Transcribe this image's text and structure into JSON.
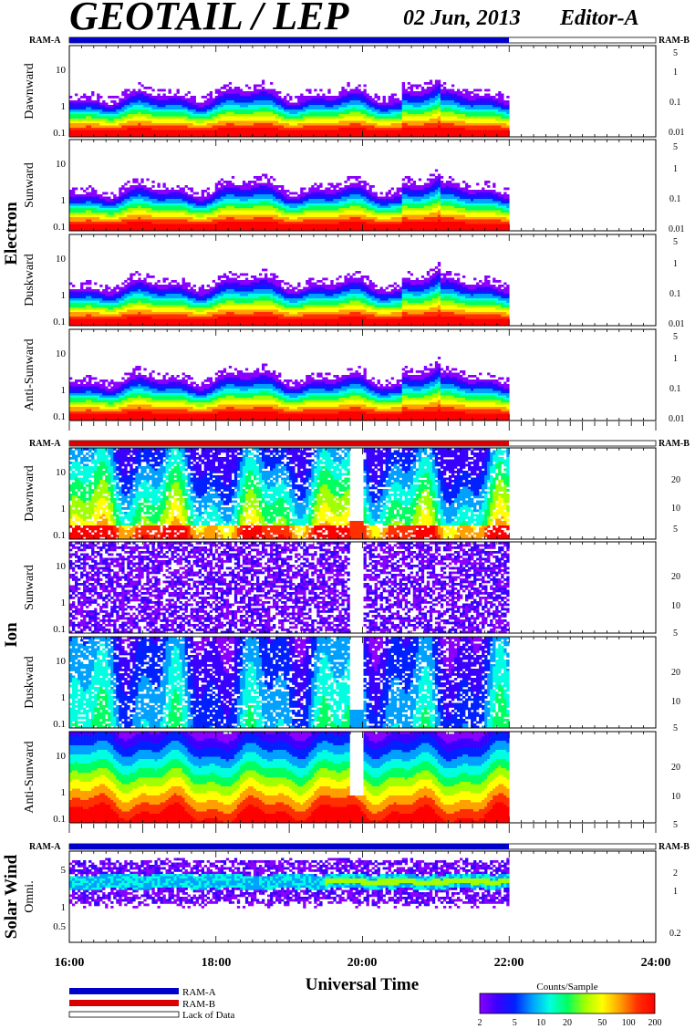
{
  "header": {
    "title": "GEOTAIL / LEP",
    "date": "02 Jun, 2013",
    "editor": "Editor-A"
  },
  "colors": {
    "ram_a": "#0000c8",
    "ram_b": "#d80000",
    "lack_of_data": "#ffffff"
  },
  "legend": {
    "ram_a": "RAM-A",
    "ram_b": "RAM-B",
    "lack_of_data": "Lack of Data"
  },
  "colorbar": {
    "title": "Counts/Sample",
    "ticks": [
      "2",
      "5",
      "10",
      "20",
      "50",
      "100",
      "200"
    ],
    "tick_values": [
      2,
      5,
      10,
      20,
      50,
      100,
      200
    ],
    "colors": [
      "#8a00ff",
      "#3a00ff",
      "#0020ff",
      "#00a0ff",
      "#00ffe0",
      "#00ff60",
      "#a0ff00",
      "#ffff00",
      "#ffa000",
      "#ff3000",
      "#ff0000"
    ]
  },
  "chart_data": {
    "type": "heatmap",
    "xlabel": "Universal Time",
    "x_ticks": [
      "16:00",
      "18:00",
      "20:00",
      "22:00",
      "24:00"
    ],
    "x_range": [
      16,
      24
    ],
    "data_end_hour": 22.0,
    "ram_mode_label_left": "RAM-A",
    "ram_mode_label_right": "RAM-B",
    "groups": [
      {
        "name": "Electron",
        "ram_bar": "a",
        "panels": [
          {
            "label": "Dawnward",
            "left_ticks": [
              "10",
              "1",
              "0.1"
            ],
            "right_ticks": [
              "5",
              "1",
              "0.1",
              "0.01"
            ],
            "profile": "electron"
          },
          {
            "label": "Sunward",
            "left_ticks": [
              "10",
              "1",
              "0.1"
            ],
            "right_ticks": [
              "5",
              "1",
              "0.1",
              "0.01"
            ],
            "profile": "electron"
          },
          {
            "label": "Duskward",
            "left_ticks": [
              "10",
              "1",
              "0.1"
            ],
            "right_ticks": [
              "5",
              "1",
              "0.1",
              "0.01"
            ],
            "profile": "electron"
          },
          {
            "label": "Anti-Sunward",
            "left_ticks": [
              "10",
              "1",
              "0.1"
            ],
            "right_ticks": [
              "5",
              "1",
              "0.1",
              "0.01"
            ],
            "profile": "electron"
          }
        ]
      },
      {
        "name": "Ion",
        "ram_bar": "b",
        "panels": [
          {
            "label": "Dawnward",
            "left_ticks": [
              "10",
              "1",
              "0.1"
            ],
            "right_ticks": [
              "20",
              "10",
              "5"
            ],
            "profile": "ion_mixed"
          },
          {
            "label": "Sunward",
            "left_ticks": [
              "10",
              "1",
              "0.1"
            ],
            "right_ticks": [
              "20",
              "10",
              "5"
            ],
            "profile": "ion_sparse"
          },
          {
            "label": "Duskward",
            "left_ticks": [
              "10",
              "1",
              "0.1"
            ],
            "right_ticks": [
              "20",
              "10",
              "5"
            ],
            "profile": "ion_medium"
          },
          {
            "label": "Anti-Sunward",
            "left_ticks": [
              "10",
              "1",
              "0.1"
            ],
            "right_ticks": [
              "20",
              "10",
              "5"
            ],
            "profile": "ion_dense"
          }
        ]
      },
      {
        "name": "Solar Wind",
        "ram_bar": "a",
        "panels": [
          {
            "label": "Omni.",
            "left_ticks": [
              "5",
              "1",
              "0.5"
            ],
            "right_ticks": [
              "2",
              "1",
              "0.2"
            ],
            "profile": "solarwind"
          }
        ]
      }
    ]
  }
}
